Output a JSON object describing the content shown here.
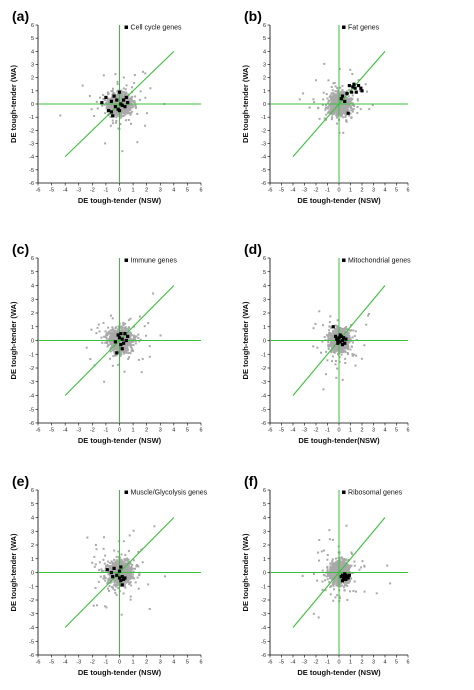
{
  "figure": {
    "colors": {
      "background_genes": "#a9a9a9",
      "highlight_genes": "#000000",
      "reference_lines": "#3cbf3c",
      "axes": "#000000"
    }
  },
  "chart_data": [
    {
      "panel": "(a)",
      "type": "scatter",
      "legend": "Cell cycle genes",
      "xlabel": "DE tough-tender (NSW)",
      "ylabel": "DE tough-tender (WA)",
      "xlim": [
        -6,
        6
      ],
      "ylim": [
        -6,
        6
      ],
      "xticks": [
        -6,
        -5,
        -4,
        -3,
        -2,
        -1,
        0,
        1,
        2,
        3,
        4,
        5,
        6
      ],
      "yticks": [
        -6,
        -5,
        -4,
        -3,
        -2,
        -1,
        0,
        1,
        2,
        3,
        4,
        5,
        6
      ],
      "reference_lines": [
        "x=0",
        "y=0",
        "y=x"
      ],
      "highlight_points": [
        [
          -1.3,
          0.1
        ],
        [
          -1.0,
          0.5
        ],
        [
          -0.8,
          -0.5
        ],
        [
          -0.6,
          0.2
        ],
        [
          -0.5,
          -0.9
        ],
        [
          -0.4,
          0.6
        ],
        [
          -0.3,
          -0.2
        ],
        [
          -0.2,
          0.3
        ],
        [
          -0.1,
          -0.4
        ],
        [
          0.0,
          0.9
        ],
        [
          0.1,
          0.0
        ],
        [
          0.2,
          -0.1
        ],
        [
          0.3,
          0.3
        ],
        [
          0.4,
          -0.2
        ],
        [
          0.6,
          0.1
        ],
        [
          -0.6,
          -0.6
        ],
        [
          0.0,
          -0.5
        ],
        [
          0.5,
          0.5
        ]
      ]
    },
    {
      "panel": "(b)",
      "type": "scatter",
      "legend": "Fat genes",
      "xlabel": "DE tough-tender (NSW)",
      "ylabel": "DE tough-tender (WA)",
      "xlim": [
        -6,
        6
      ],
      "ylim": [
        -6,
        6
      ],
      "xticks": [
        -6,
        -5,
        -4,
        -3,
        -2,
        -1,
        0,
        1,
        2,
        3,
        4,
        5,
        6
      ],
      "yticks": [
        -6,
        -5,
        -4,
        -3,
        -2,
        -1,
        0,
        1,
        2,
        3,
        4,
        5,
        6
      ],
      "reference_lines": [
        "x=0",
        "y=0",
        "y=x"
      ],
      "highlight_points": [
        [
          0.2,
          0.4
        ],
        [
          0.5,
          0.2
        ],
        [
          0.7,
          0.8
        ],
        [
          0.9,
          1.4
        ],
        [
          1.1,
          0.9
        ],
        [
          1.2,
          1.3
        ],
        [
          1.4,
          1.2
        ],
        [
          1.5,
          0.9
        ],
        [
          1.7,
          1.4
        ],
        [
          1.9,
          1.2
        ],
        [
          2.0,
          1.0
        ],
        [
          0.8,
          -0.7
        ],
        [
          0.3,
          0.6
        ],
        [
          1.3,
          1.5
        ]
      ]
    },
    {
      "panel": "(c)",
      "type": "scatter",
      "legend": "Immune genes",
      "xlabel": "DE tough-tender (NSW)",
      "ylabel": "DE tough-tender (WA)",
      "xlim": [
        -6,
        6
      ],
      "ylim": [
        -6,
        6
      ],
      "xticks": [
        -6,
        -5,
        -4,
        -3,
        -2,
        -1,
        0,
        1,
        2,
        3,
        4,
        5,
        6
      ],
      "yticks": [
        -6,
        -5,
        -4,
        -3,
        -2,
        -1,
        0,
        1,
        2,
        3,
        4,
        5,
        6
      ],
      "reference_lines": [
        "x=0",
        "y=0",
        "y=x"
      ],
      "highlight_points": [
        [
          -0.3,
          -0.1
        ],
        [
          -0.1,
          0.4
        ],
        [
          0.1,
          0.5
        ],
        [
          0.2,
          0.1
        ],
        [
          0.3,
          -0.2
        ],
        [
          0.4,
          0.5
        ],
        [
          0.5,
          0.0
        ],
        [
          0.2,
          -0.6
        ],
        [
          -0.2,
          -0.9
        ],
        [
          0.0,
          0.2
        ],
        [
          0.6,
          0.3
        ],
        [
          0.1,
          -0.3
        ]
      ]
    },
    {
      "panel": "(d)",
      "type": "scatter",
      "legend": "Mitochondrial genes",
      "xlabel": "DE tough-tender(NSW)",
      "ylabel": "DE tough-tender (WA)",
      "xlim": [
        -6,
        6
      ],
      "ylim": [
        -6,
        6
      ],
      "xticks": [
        -6,
        -5,
        -4,
        -3,
        -2,
        -1,
        0,
        1,
        2,
        3,
        4,
        5,
        6
      ],
      "yticks": [
        -6,
        -5,
        -4,
        -3,
        -2,
        -1,
        0,
        1,
        2,
        3,
        4,
        5,
        6
      ],
      "reference_lines": [
        "x=0",
        "y=0",
        "y=x"
      ],
      "highlight_points": [
        [
          -0.5,
          1.0
        ],
        [
          -0.3,
          0.3
        ],
        [
          -0.2,
          0.1
        ],
        [
          -0.1,
          0.0
        ],
        [
          0.0,
          0.2
        ],
        [
          0.1,
          -0.1
        ],
        [
          0.2,
          0.3
        ],
        [
          0.3,
          0.0
        ],
        [
          0.4,
          0.2
        ],
        [
          0.5,
          -0.2
        ],
        [
          0.6,
          0.1
        ],
        [
          0.1,
          0.4
        ],
        [
          0.3,
          -0.3
        ],
        [
          -0.1,
          -0.2
        ]
      ]
    },
    {
      "panel": "(e)",
      "type": "scatter",
      "legend": "Muscle/Glycolysis genes",
      "xlabel": "DE tough-tender (NSW)",
      "ylabel": "DE tough-tender (WA)",
      "xlim": [
        -6,
        6
      ],
      "ylim": [
        -6,
        6
      ],
      "xticks": [
        -6,
        -5,
        -4,
        -3,
        -2,
        -1,
        0,
        1,
        2,
        3,
        4,
        5,
        6
      ],
      "yticks": [
        -6,
        -5,
        -4,
        -3,
        -2,
        -1,
        0,
        1,
        2,
        3,
        4,
        5,
        6
      ],
      "reference_lines": [
        "x=0",
        "y=0",
        "y=x"
      ],
      "highlight_points": [
        [
          -0.9,
          0.2
        ],
        [
          -0.6,
          0.0
        ],
        [
          -0.4,
          0.3
        ],
        [
          -0.2,
          -0.2
        ],
        [
          0.0,
          -0.4
        ],
        [
          0.1,
          -0.6
        ],
        [
          0.2,
          -0.3
        ],
        [
          0.3,
          -0.5
        ],
        [
          0.1,
          0.4
        ],
        [
          -0.5,
          -0.3
        ],
        [
          0.4,
          -0.4
        ],
        [
          0.2,
          -0.9
        ],
        [
          0.0,
          0.1
        ]
      ]
    },
    {
      "panel": "(f)",
      "type": "scatter",
      "legend": "Ribosomal genes",
      "xlabel": "DE tough-tender (NSW)",
      "ylabel": "DE tough-tender (WA)",
      "xlim": [
        -6,
        6
      ],
      "ylim": [
        -6,
        6
      ],
      "xticks": [
        -6,
        -5,
        -4,
        -3,
        -2,
        -1,
        0,
        1,
        2,
        3,
        4,
        5,
        6
      ],
      "yticks": [
        -6,
        -5,
        -4,
        -3,
        -2,
        -1,
        0,
        1,
        2,
        3,
        4,
        5,
        6
      ],
      "reference_lines": [
        "x=0",
        "y=0",
        "y=x"
      ],
      "highlight_points": [
        [
          0.2,
          -0.3
        ],
        [
          0.3,
          -0.2
        ],
        [
          0.4,
          -0.4
        ],
        [
          0.5,
          -0.3
        ],
        [
          0.6,
          -0.5
        ],
        [
          0.7,
          -0.3
        ],
        [
          0.8,
          -0.4
        ],
        [
          0.5,
          -0.1
        ],
        [
          0.3,
          -0.6
        ],
        [
          0.9,
          -0.2
        ],
        [
          0.6,
          -0.2
        ],
        [
          0.4,
          -0.5
        ]
      ]
    }
  ]
}
